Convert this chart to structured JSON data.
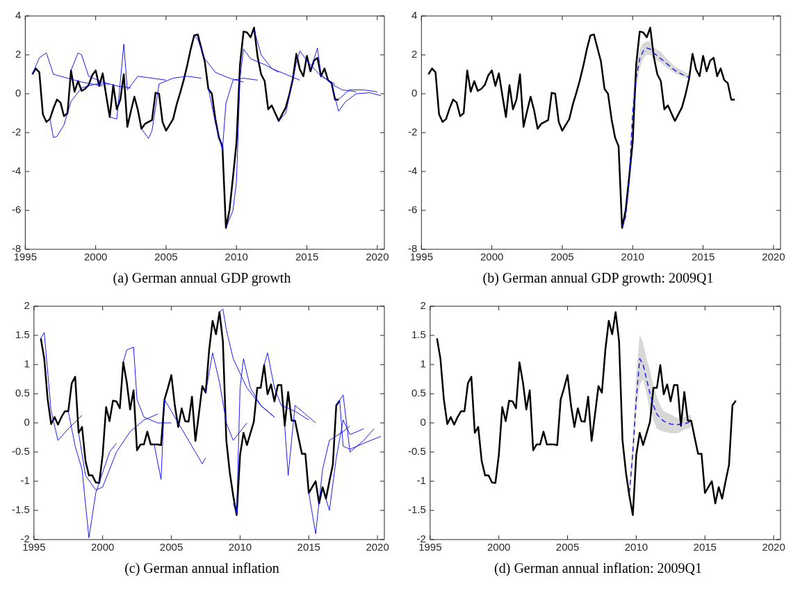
{
  "chart_data": [
    {
      "type": "line",
      "title": "(a)  German annual GDP growth",
      "xlim": [
        1995,
        2020.5
      ],
      "xticks": [
        1995,
        2000,
        2005,
        2010,
        2015,
        2020
      ],
      "ylim": [
        -8,
        4
      ],
      "yticks": [
        -8,
        -6,
        -4,
        -2,
        0,
        2,
        4
      ],
      "legend": false,
      "series": [
        {
          "color": "#000000",
          "x": [
            1995.5,
            1995.75,
            1996,
            1996.25,
            1996.5,
            1996.75,
            1997,
            1997.25,
            1997.5,
            1997.75,
            1998,
            1998.25,
            1998.5,
            1998.75,
            1999,
            1999.25,
            1999.5,
            1999.75,
            2000,
            2000.25,
            2000.5,
            2000.75,
            2001,
            2001.25,
            2001.5,
            2001.75,
            2002,
            2002.25,
            2002.5,
            2002.75,
            2003,
            2003.25,
            2003.5,
            2003.75,
            2004,
            2004.25,
            2004.5,
            2004.75,
            2005,
            2005.25,
            2005.5,
            2005.75,
            2006,
            2006.25,
            2006.5,
            2006.75,
            2007,
            2007.25,
            2007.5,
            2007.75,
            2008,
            2008.25,
            2008.5,
            2008.75,
            2009,
            2009.25,
            2009.5,
            2009.75,
            2010,
            2010.25,
            2010.5,
            2010.75,
            2011,
            2011.25,
            2011.5,
            2011.75,
            2012,
            2012.25,
            2012.5,
            2012.75,
            2013,
            2013.25,
            2013.5,
            2013.75,
            2014,
            2014.25,
            2014.5,
            2014.75,
            2015,
            2015.25,
            2015.5,
            2015.75,
            2016,
            2016.25,
            2016.5,
            2016.75,
            2017,
            2017.25
          ],
          "values": [
            1.0,
            1.3,
            1.1,
            -1.05,
            -1.45,
            -1.3,
            -0.75,
            -0.3,
            -0.45,
            -1.15,
            -1.0,
            1.2,
            0.1,
            0.65,
            0.15,
            0.25,
            0.45,
            0.95,
            1.2,
            0.4,
            1.05,
            -0.1,
            -1.2,
            0.45,
            -0.8,
            -0.3,
            1.0,
            -1.7,
            -0.9,
            -0.15,
            -0.85,
            -1.8,
            -1.55,
            -1.45,
            -1.35,
            0.05,
            0.0,
            -1.45,
            -1.9,
            -1.6,
            -1.3,
            -0.55,
            0.05,
            0.7,
            1.45,
            2.3,
            3.0,
            3.05,
            2.35,
            1.65,
            0.25,
            0.0,
            -1.3,
            -2.25,
            -2.7,
            -6.9,
            -6.0,
            -4.3,
            -2.5,
            1.5,
            3.2,
            3.15,
            2.9,
            3.4,
            1.9,
            1.0,
            0.65,
            -0.8,
            -0.6,
            -1.0,
            -1.4,
            -1.05,
            -0.7,
            -0.05,
            0.75,
            2.05,
            1.25,
            0.9,
            1.95,
            1.15,
            1.7,
            1.85,
            0.9,
            1.3,
            0.7,
            0.55,
            -0.3,
            -0.3
          ]
        },
        {
          "color": "#0000ff",
          "x": [
            1995.5,
            1996,
            1996.5,
            1997,
            1998,
            1999,
            2000.5
          ],
          "values": [
            1.0,
            1.85,
            2.1,
            1.0,
            0.8,
            0.6,
            0.4
          ]
        },
        {
          "color": "#0000ff",
          "x": [
            1996.75,
            1997,
            1997.25,
            1997.75,
            1998.25,
            1999,
            2000,
            2001
          ],
          "values": [
            -1.3,
            -2.25,
            -2.2,
            -1.6,
            -0.4,
            0.3,
            0.5,
            0.5
          ]
        },
        {
          "color": "#0000ff",
          "x": [
            1998.25,
            1998.75,
            1999,
            1999.5,
            2000.5,
            2001.5,
            2002.5
          ],
          "values": [
            1.2,
            2.1,
            2.0,
            0.9,
            0.6,
            0.4,
            0.3
          ]
        },
        {
          "color": "#0000ff",
          "x": [
            2001,
            2001.5,
            2002,
            2002.25,
            2003,
            2004,
            2005
          ],
          "values": [
            -1.2,
            -1.3,
            2.55,
            0.2,
            0.9,
            0.8,
            0.7
          ]
        },
        {
          "color": "#0000ff",
          "x": [
            2003.25,
            2003.75,
            2004,
            2004.5,
            2005.5,
            2006.5,
            2007.5
          ],
          "values": [
            -1.8,
            -2.3,
            -1.9,
            0.5,
            0.8,
            0.9,
            0.8
          ]
        },
        {
          "color": "#0000ff",
          "x": [
            2007,
            2007.25,
            2007.75,
            2008.5,
            2009.5,
            2010.5
          ],
          "values": [
            3.0,
            2.8,
            1.8,
            1.1,
            0.8,
            0.6
          ]
        },
        {
          "color": "#0000ff",
          "x": [
            2008,
            2008.5,
            2009,
            2009.25,
            2009.75,
            2010.5,
            2011.5
          ],
          "values": [
            0.3,
            -1.5,
            -2.9,
            -0.5,
            0.7,
            0.8,
            0.7
          ]
        },
        {
          "color": "#0000ff",
          "x": [
            2009.25,
            2009.75,
            2010,
            2010.25,
            2010.5,
            2011,
            2012,
            2013
          ],
          "values": [
            -6.9,
            -6.0,
            -4.5,
            0.8,
            2.3,
            1.8,
            1.5,
            1.1
          ]
        },
        {
          "color": "#0000ff",
          "x": [
            2011.25,
            2011.75,
            2012.5,
            2013.5,
            2014.5
          ],
          "values": [
            3.3,
            2.0,
            1.3,
            1.0,
            0.7
          ]
        },
        {
          "color": "#0000ff",
          "x": [
            2013,
            2013.5,
            2014.25,
            2014.5,
            2015,
            2016,
            2017
          ],
          "values": [
            -1.4,
            -1.0,
            1.6,
            2.2,
            1.7,
            0.9,
            0.5
          ]
        },
        {
          "color": "#0000ff",
          "x": [
            2015.25,
            2015.75,
            2016,
            2016.75,
            2017.5,
            2018.5
          ],
          "values": [
            1.2,
            2.35,
            1.0,
            0.5,
            0.2,
            0.1
          ]
        },
        {
          "color": "#0000ff",
          "x": [
            2016.75,
            2017.25,
            2017.75,
            2018.5,
            2019.5,
            2020.25
          ],
          "values": [
            0.5,
            -0.9,
            -0.4,
            0.0,
            0.05,
            -0.1
          ]
        },
        {
          "color": "#0000ff",
          "x": [
            2017.25,
            2018,
            2019,
            2020
          ],
          "values": [
            -0.3,
            0.2,
            0.2,
            0.1
          ]
        }
      ]
    },
    {
      "type": "line",
      "title": "(b)  German annual GDP growth:  2009Q1",
      "xlim": [
        1995,
        2020.5
      ],
      "xticks": [
        1995,
        2000,
        2005,
        2010,
        2015,
        2020
      ],
      "ylim": [
        -8,
        4
      ],
      "yticks": [
        -8,
        -6,
        -4,
        -2,
        0,
        2,
        4
      ],
      "legend": false,
      "series": [
        {
          "color": "#000000",
          "x": [
            1995.5,
            1995.75,
            1996,
            1996.25,
            1996.5,
            1996.75,
            1997,
            1997.25,
            1997.5,
            1997.75,
            1998,
            1998.25,
            1998.5,
            1998.75,
            1999,
            1999.25,
            1999.5,
            1999.75,
            2000,
            2000.25,
            2000.5,
            2000.75,
            2001,
            2001.25,
            2001.5,
            2001.75,
            2002,
            2002.25,
            2002.5,
            2002.75,
            2003,
            2003.25,
            2003.5,
            2003.75,
            2004,
            2004.25,
            2004.5,
            2004.75,
            2005,
            2005.25,
            2005.5,
            2005.75,
            2006,
            2006.25,
            2006.5,
            2006.75,
            2007,
            2007.25,
            2007.5,
            2007.75,
            2008,
            2008.25,
            2008.5,
            2008.75,
            2009,
            2009.25,
            2009.5,
            2009.75,
            2010,
            2010.25,
            2010.5,
            2010.75,
            2011,
            2011.25,
            2011.5,
            2011.75,
            2012,
            2012.25,
            2012.5,
            2012.75,
            2013,
            2013.25,
            2013.5,
            2013.75,
            2014,
            2014.25,
            2014.5,
            2014.75,
            2015,
            2015.25,
            2015.5,
            2015.75,
            2016,
            2016.25,
            2016.5,
            2016.75,
            2017,
            2017.25
          ],
          "values": [
            1.0,
            1.3,
            1.1,
            -1.05,
            -1.45,
            -1.3,
            -0.75,
            -0.3,
            -0.45,
            -1.15,
            -1.0,
            1.2,
            0.1,
            0.65,
            0.15,
            0.25,
            0.45,
            0.95,
            1.2,
            0.4,
            1.05,
            -0.1,
            -1.2,
            0.45,
            -0.8,
            -0.3,
            1.0,
            -1.7,
            -0.9,
            -0.15,
            -0.85,
            -1.8,
            -1.55,
            -1.45,
            -1.35,
            0.05,
            0.0,
            -1.45,
            -1.9,
            -1.6,
            -1.3,
            -0.55,
            0.05,
            0.7,
            1.45,
            2.3,
            3.0,
            3.05,
            2.35,
            1.65,
            0.25,
            0.0,
            -1.3,
            -2.25,
            -2.7,
            -6.9,
            -6.0,
            -4.3,
            -2.5,
            1.5,
            3.2,
            3.15,
            2.9,
            3.4,
            1.9,
            1.0,
            0.65,
            -0.8,
            -0.6,
            -1.0,
            -1.4,
            -1.05,
            -0.7,
            -0.05,
            0.75,
            2.05,
            1.25,
            0.9,
            1.95,
            1.15,
            1.7,
            1.85,
            0.9,
            1.3,
            0.7,
            0.55,
            -0.3,
            -0.3
          ]
        },
        {
          "color": "#0000ff",
          "line_style": "dashed",
          "x": [
            2009.25,
            2009.5,
            2009.75,
            2010,
            2010.25,
            2010.5,
            2010.75,
            2011,
            2011.25,
            2011.5,
            2011.75,
            2012,
            2012.5,
            2013,
            2013.5,
            2014
          ],
          "values": [
            -6.9,
            -6.3,
            -4.5,
            -1.0,
            0.8,
            1.8,
            2.2,
            2.35,
            2.3,
            2.1,
            1.95,
            1.8,
            1.5,
            1.2,
            1.0,
            0.85
          ],
          "lower": [
            -6.9,
            -6.6,
            -5.2,
            -1.8,
            0.2,
            1.3,
            1.8,
            2.0,
            2.0,
            1.8,
            1.7,
            1.6,
            1.3,
            1.05,
            0.9,
            0.75
          ],
          "upper": [
            -6.9,
            -6.0,
            -3.8,
            -0.2,
            1.4,
            2.3,
            2.6,
            2.7,
            2.7,
            2.4,
            2.25,
            2.15,
            1.75,
            1.4,
            1.2,
            1.0
          ]
        }
      ]
    },
    {
      "type": "line",
      "title": "(c)  German annual inflation",
      "xlim": [
        1995,
        2020.5
      ],
      "xticks": [
        1995,
        2000,
        2005,
        2010,
        2015,
        2020
      ],
      "ylim": [
        -2,
        2
      ],
      "yticks": [
        -2,
        -1.5,
        -1,
        -0.5,
        0,
        0.5,
        1,
        1.5,
        2
      ],
      "legend": false,
      "series": [
        {
          "color": "#000000",
          "x": [
            1995.5,
            1995.75,
            1996,
            1996.25,
            1996.5,
            1996.75,
            1997,
            1997.25,
            1997.5,
            1997.75,
            1998,
            1998.25,
            1998.5,
            1998.75,
            1999,
            1999.25,
            1999.5,
            1999.75,
            2000,
            2000.25,
            2000.5,
            2000.75,
            2001,
            2001.25,
            2001.5,
            2001.75,
            2002,
            2002.25,
            2002.5,
            2002.75,
            2003,
            2003.25,
            2003.5,
            2003.75,
            2004,
            2004.25,
            2004.5,
            2004.75,
            2005,
            2005.25,
            2005.5,
            2005.75,
            2006,
            2006.25,
            2006.5,
            2006.75,
            2007,
            2007.25,
            2007.5,
            2007.75,
            2008,
            2008.25,
            2008.5,
            2008.75,
            2009,
            2009.25,
            2009.5,
            2009.75,
            2010,
            2010.25,
            2010.5,
            2010.75,
            2011,
            2011.25,
            2011.5,
            2011.75,
            2012,
            2012.25,
            2012.5,
            2012.75,
            2013,
            2013.25,
            2013.5,
            2013.75,
            2014,
            2014.25,
            2014.5,
            2014.75,
            2015,
            2015.25,
            2015.5,
            2015.75,
            2016,
            2016.25,
            2016.5,
            2016.75,
            2017,
            2017.25
          ],
          "values": [
            1.45,
            1.1,
            0.4,
            -0.02,
            0.1,
            -0.03,
            0.1,
            0.2,
            0.2,
            0.68,
            0.79,
            -0.17,
            -0.07,
            -0.65,
            -0.9,
            -0.9,
            -1.02,
            -1.03,
            -0.55,
            0.27,
            0.03,
            0.38,
            0.37,
            0.25,
            1.04,
            0.7,
            0.23,
            0.56,
            -0.47,
            -0.37,
            -0.37,
            -0.15,
            -0.37,
            -0.37,
            -0.37,
            -0.38,
            0.4,
            0.6,
            0.82,
            0.3,
            -0.07,
            0.25,
            0.03,
            0.02,
            0.45,
            -0.31,
            0.15,
            0.63,
            0.52,
            1.25,
            1.75,
            1.52,
            1.9,
            1.4,
            -0.3,
            -0.85,
            -1.25,
            -1.58,
            -0.55,
            -0.17,
            -0.38,
            -0.18,
            0.02,
            0.6,
            0.6,
            0.99,
            0.49,
            0.66,
            0.37,
            0.65,
            0.65,
            -0.05,
            0.53,
            0.04,
            0.04,
            -0.25,
            -0.53,
            -0.53,
            -1.2,
            -1.1,
            -1.0,
            -1.38,
            -1.1,
            -1.3,
            -1.0,
            -0.72,
            0.3,
            0.38
          ]
        },
        {
          "color": "#0000ff",
          "x": [
            1995.5,
            1995.75,
            1996.25,
            1996.75,
            1997.5,
            1998.5
          ],
          "values": [
            1.45,
            1.55,
            0.2,
            -0.3,
            -0.1,
            0.13
          ]
        },
        {
          "color": "#0000ff",
          "x": [
            1997.5,
            1998,
            1998.5,
            1999,
            1999.5,
            2000.5,
            2001
          ],
          "values": [
            0.2,
            -0.4,
            -0.8,
            -1.97,
            -1.2,
            -0.5,
            -0.35
          ]
        },
        {
          "color": "#0000ff",
          "x": [
            1998.25,
            1998.75,
            1999.5,
            2000,
            2001,
            2002,
            2003,
            2004
          ],
          "values": [
            -0.17,
            -0.9,
            -1.15,
            -1.1,
            -0.5,
            -0.15,
            0.05,
            0.15
          ]
        },
        {
          "color": "#0000ff",
          "x": [
            2001.5,
            2001.75,
            2002.25,
            2002.5,
            2003,
            2004,
            2005
          ],
          "values": [
            1.04,
            1.25,
            1.3,
            0.4,
            0.1,
            0.0,
            0.0
          ]
        },
        {
          "color": "#0000ff",
          "x": [
            2003.75,
            2004.25,
            2004.5,
            2005.5,
            2006.5,
            2007.25,
            2007.5
          ],
          "values": [
            -0.37,
            -0.97,
            0.4,
            0.0,
            -0.4,
            -0.7,
            -0.6
          ]
        },
        {
          "color": "#0000ff",
          "x": [
            2007.5,
            2008,
            2008.5,
            2009,
            2009.5,
            2010.5
          ],
          "values": [
            0.52,
            1.2,
            0.7,
            0.0,
            -0.3,
            0.0
          ]
        },
        {
          "color": "#0000ff",
          "x": [
            2008.5,
            2008.75,
            2009,
            2009.5,
            2010.5,
            2011.5,
            2012.5
          ],
          "values": [
            1.9,
            1.95,
            1.6,
            1.1,
            0.6,
            0.3,
            0.1
          ]
        },
        {
          "color": "#0000ff",
          "x": [
            2009.5,
            2009.75,
            2010,
            2010.25,
            2010.75,
            2011.5,
            2012.5
          ],
          "values": [
            -1.38,
            -1.55,
            0.6,
            1.1,
            0.6,
            0.3,
            0.1
          ]
        },
        {
          "color": "#0000ff",
          "x": [
            2011.75,
            2012,
            2012.5,
            2013,
            2014,
            2015
          ],
          "values": [
            0.99,
            1.2,
            0.6,
            0.3,
            0.2,
            0.05
          ]
        },
        {
          "color": "#0000ff",
          "x": [
            2013.25,
            2013.5,
            2014,
            2014.5,
            2015.5
          ],
          "values": [
            -0.05,
            -0.9,
            0.3,
            0.2,
            0.0
          ]
        },
        {
          "color": "#0000ff",
          "x": [
            2015,
            2015.5,
            2016,
            2016.5,
            2017.5,
            2018
          ],
          "values": [
            -1.2,
            -1.9,
            -0.8,
            -0.3,
            -0.15,
            -0.05
          ]
        },
        {
          "color": "#0000ff",
          "x": [
            2016.25,
            2016.5,
            2017,
            2017.5,
            2018,
            2019
          ],
          "values": [
            -1.3,
            -1.5,
            -0.6,
            0.05,
            -0.2,
            -0.1
          ]
        },
        {
          "color": "#0000ff",
          "x": [
            2017.25,
            2017.5,
            2018,
            2019,
            2020.25
          ],
          "values": [
            0.38,
            -0.4,
            -0.45,
            -0.35,
            -0.23
          ]
        },
        {
          "color": "#0000ff",
          "x": [
            2017,
            2017.5,
            2018,
            2019,
            2019.75
          ],
          "values": [
            0.3,
            0.48,
            -0.5,
            -0.3,
            -0.1
          ]
        }
      ]
    },
    {
      "type": "line",
      "title": "(d)  German annual inflation:  2009Q1",
      "xlim": [
        1995,
        2020.5
      ],
      "xticks": [
        1995,
        2000,
        2005,
        2010,
        2015,
        2020
      ],
      "ylim": [
        -2,
        2
      ],
      "yticks": [
        -2,
        -1.5,
        -1,
        -0.5,
        0,
        0.5,
        1,
        1.5,
        2
      ],
      "legend": false,
      "series": [
        {
          "color": "#000000",
          "x": [
            1995.5,
            1995.75,
            1996,
            1996.25,
            1996.5,
            1996.75,
            1997,
            1997.25,
            1997.5,
            1997.75,
            1998,
            1998.25,
            1998.5,
            1998.75,
            1999,
            1999.25,
            1999.5,
            1999.75,
            2000,
            2000.25,
            2000.5,
            2000.75,
            2001,
            2001.25,
            2001.5,
            2001.75,
            2002,
            2002.25,
            2002.5,
            2002.75,
            2003,
            2003.25,
            2003.5,
            2003.75,
            2004,
            2004.25,
            2004.5,
            2004.75,
            2005,
            2005.25,
            2005.5,
            2005.75,
            2006,
            2006.25,
            2006.5,
            2006.75,
            2007,
            2007.25,
            2007.5,
            2007.75,
            2008,
            2008.25,
            2008.5,
            2008.75,
            2009,
            2009.25,
            2009.5,
            2009.75,
            2010,
            2010.25,
            2010.5,
            2010.75,
            2011,
            2011.25,
            2011.5,
            2011.75,
            2012,
            2012.25,
            2012.5,
            2012.75,
            2013,
            2013.25,
            2013.5,
            2013.75,
            2014,
            2014.25,
            2014.5,
            2014.75,
            2015,
            2015.25,
            2015.5,
            2015.75,
            2016,
            2016.25,
            2016.5,
            2016.75,
            2017,
            2017.25
          ],
          "values": [
            1.45,
            1.1,
            0.4,
            -0.02,
            0.1,
            -0.03,
            0.1,
            0.2,
            0.2,
            0.68,
            0.79,
            -0.17,
            -0.07,
            -0.65,
            -0.9,
            -0.9,
            -1.02,
            -1.03,
            -0.55,
            0.27,
            0.03,
            0.38,
            0.37,
            0.25,
            1.04,
            0.7,
            0.23,
            0.56,
            -0.47,
            -0.37,
            -0.37,
            -0.15,
            -0.37,
            -0.37,
            -0.37,
            -0.38,
            0.4,
            0.6,
            0.82,
            0.3,
            -0.07,
            0.25,
            0.03,
            0.02,
            0.45,
            -0.31,
            0.15,
            0.63,
            0.52,
            1.25,
            1.75,
            1.52,
            1.9,
            1.4,
            -0.3,
            -0.85,
            -1.25,
            -1.58,
            -0.55,
            -0.17,
            -0.38,
            -0.18,
            0.02,
            0.6,
            0.6,
            0.99,
            0.49,
            0.66,
            0.37,
            0.65,
            0.65,
            -0.05,
            0.53,
            0.04,
            0.04,
            -0.25,
            -0.53,
            -0.53,
            -1.2,
            -1.1,
            -1.0,
            -1.38,
            -1.1,
            -1.3,
            -1.0,
            -0.72,
            0.3,
            0.38
          ]
        },
        {
          "color": "#0000ff",
          "line_style": "dashed",
          "x": [
            2009.5,
            2009.75,
            2010,
            2010.25,
            2010.5,
            2010.75,
            2011,
            2011.25,
            2011.5,
            2011.75,
            2012,
            2012.5,
            2013,
            2013.5,
            2014
          ],
          "values": [
            -1.2,
            -0.5,
            0.4,
            1.1,
            1.0,
            0.75,
            0.5,
            0.3,
            0.15,
            0.08,
            0.03,
            -0.02,
            -0.03,
            -0.02,
            0.03
          ],
          "lower": [
            -1.25,
            -0.75,
            0.2,
            0.65,
            0.75,
            0.5,
            0.2,
            0.05,
            -0.1,
            -0.13,
            -0.15,
            -0.18,
            -0.18,
            -0.12,
            -0.08
          ],
          "upper": [
            -1.15,
            -0.25,
            0.85,
            1.5,
            1.38,
            1.1,
            0.9,
            0.65,
            0.45,
            0.3,
            0.2,
            0.15,
            0.08,
            0.1,
            0.15
          ]
        }
      ]
    }
  ]
}
